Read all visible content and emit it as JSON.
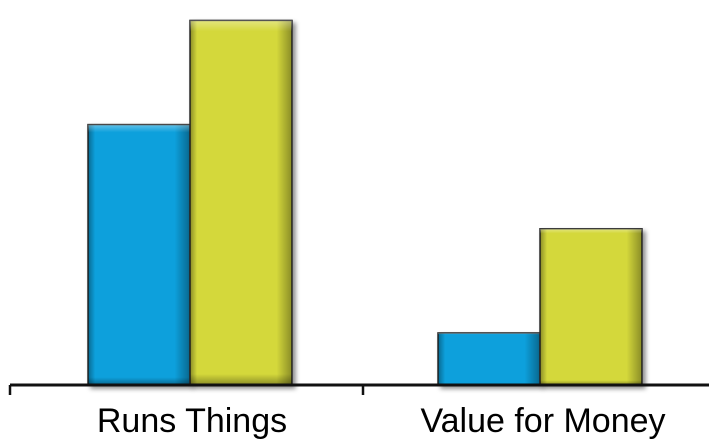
{
  "chart_data": {
    "type": "bar",
    "categories": [
      "Runs Things",
      "Value for Money"
    ],
    "series": [
      {
        "color": "#0aa0dc",
        "values": [
          50,
          10
        ]
      },
      {
        "color": "#d4d83a",
        "values": [
          70,
          30
        ]
      }
    ],
    "ylim": [
      0,
      72
    ],
    "grid": false,
    "legend": "none"
  }
}
